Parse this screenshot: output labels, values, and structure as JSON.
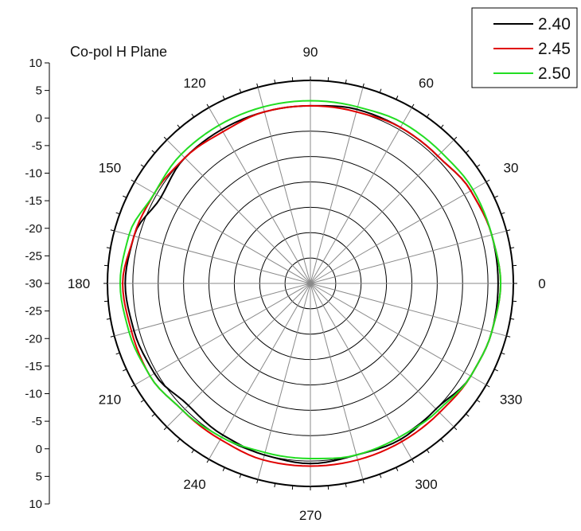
{
  "chart_data": {
    "type": "polar-line",
    "title": "Co-pol H Plane",
    "radial_ticks": [
      "10",
      "5",
      "0",
      "-5",
      "-10",
      "-15",
      "-20",
      "-25",
      "-30",
      "-25",
      "-20",
      "-15",
      "-10",
      "-5",
      "0",
      "5",
      "10"
    ],
    "rlim": [
      -30,
      10
    ],
    "rings": [
      -25,
      -20,
      -15,
      -10,
      -5,
      0,
      5,
      10
    ],
    "angle_labels": [
      "0",
      "30",
      "60",
      "90",
      "120",
      "150",
      "180",
      "210",
      "240",
      "270",
      "300",
      "330"
    ],
    "angle_values": [
      0,
      30,
      60,
      90,
      120,
      150,
      180,
      210,
      240,
      270,
      300,
      330
    ],
    "spoke_step_deg": 15,
    "legend_position": "top-right",
    "series": [
      {
        "name": "2.40",
        "color": "#000000",
        "theta": [
          0,
          15,
          30,
          45,
          60,
          75,
          90,
          105,
          120,
          135,
          150,
          165,
          180,
          195,
          210,
          225,
          240,
          255,
          270,
          285,
          300,
          315,
          330,
          345
        ],
        "r": [
          7,
          7,
          6.5,
          5.5,
          5.5,
          5.5,
          5,
          5,
          5,
          5,
          4,
          6,
          6.5,
          6,
          5.5,
          4,
          4.5,
          5,
          5.5,
          5,
          5.5,
          5,
          6.5,
          7
        ]
      },
      {
        "name": "2.45",
        "color": "#e00000",
        "theta": [
          0,
          15,
          30,
          45,
          60,
          75,
          90,
          105,
          120,
          135,
          150,
          165,
          180,
          195,
          210,
          225,
          240,
          255,
          270,
          285,
          300,
          315,
          330,
          345
        ],
        "r": [
          7.5,
          7,
          6.5,
          5.5,
          5.5,
          5,
          5,
          5,
          4.5,
          5,
          5.5,
          6,
          7,
          6.5,
          6.5,
          5.5,
          5.5,
          6,
          6,
          6,
          6,
          6,
          6.5,
          7
        ]
      },
      {
        "name": "2.50",
        "color": "#22dd22",
        "theta": [
          0,
          15,
          30,
          45,
          60,
          75,
          90,
          105,
          120,
          135,
          150,
          165,
          180,
          195,
          210,
          225,
          240,
          255,
          270,
          285,
          300,
          315,
          330,
          345
        ],
        "r": [
          7.5,
          7,
          7,
          6.5,
          6.5,
          6,
          6,
          6,
          6,
          6,
          5.5,
          7,
          7.5,
          7,
          6.5,
          5.5,
          5,
          4.5,
          4.5,
          5,
          5,
          5.5,
          6.5,
          7
        ]
      }
    ]
  }
}
